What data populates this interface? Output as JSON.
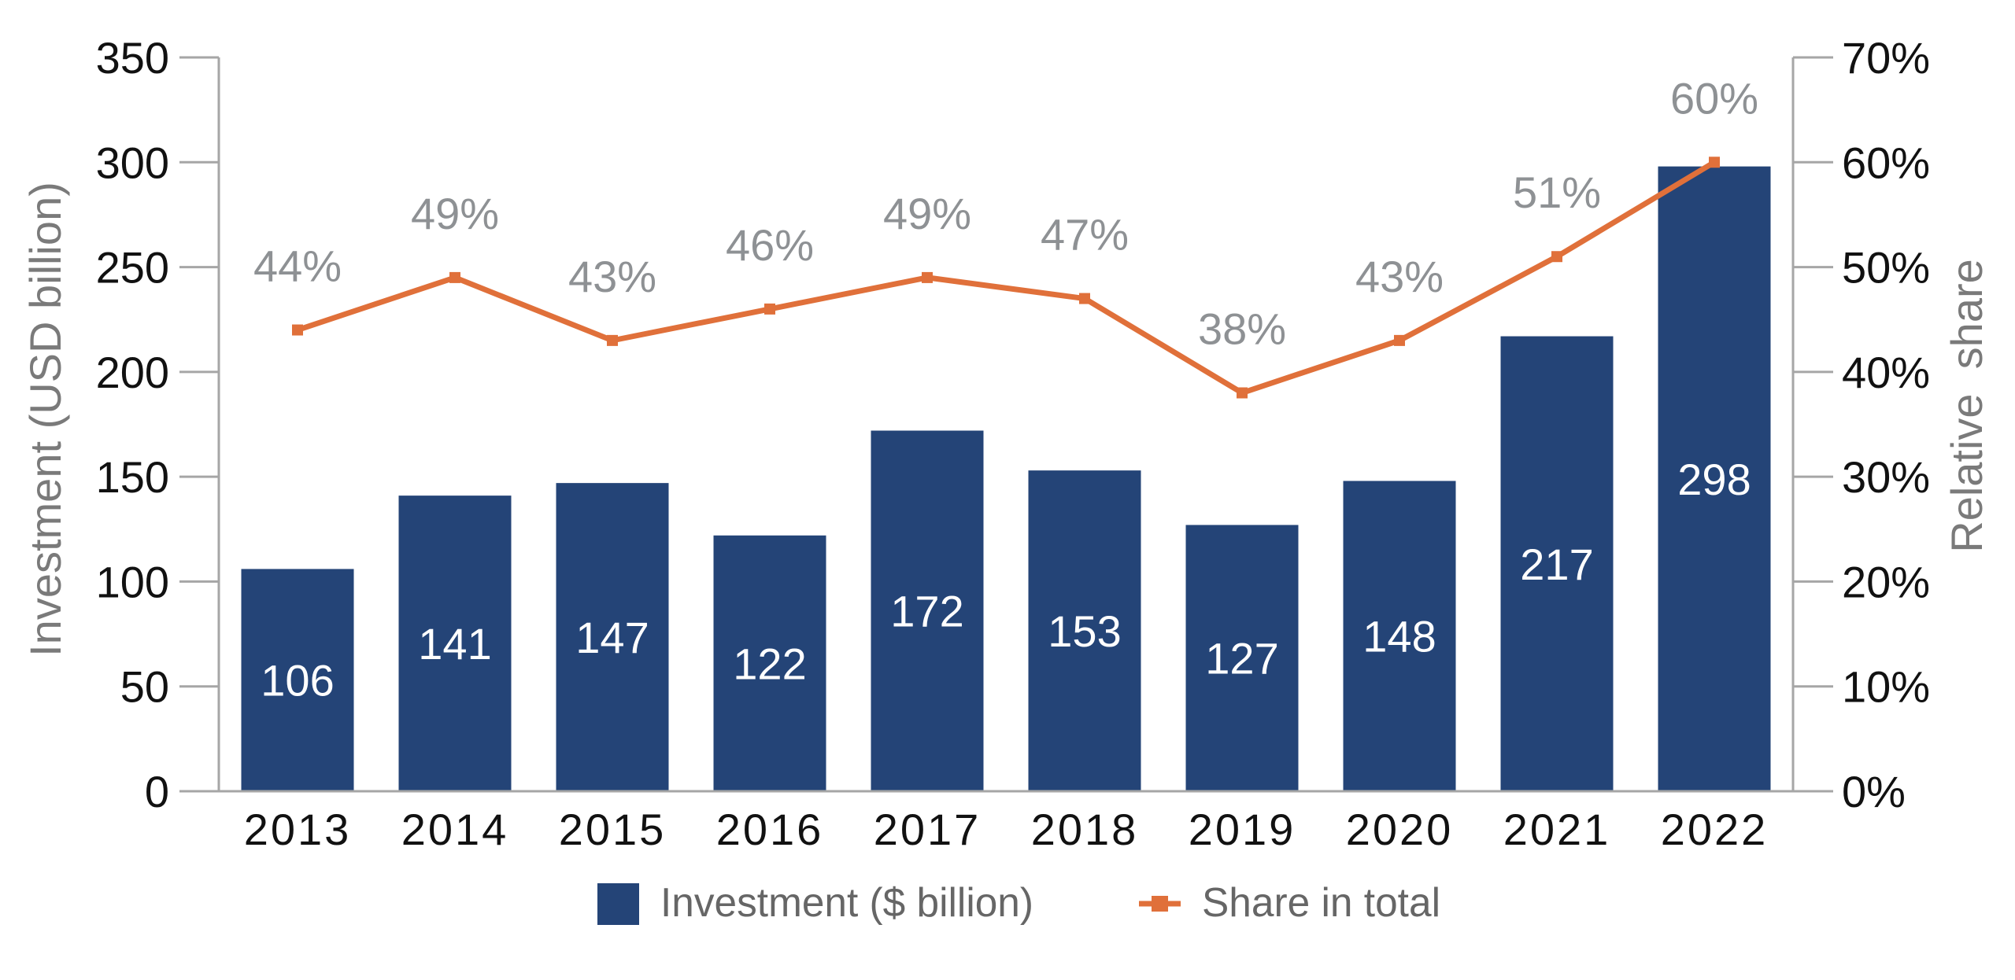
{
  "chart_data": {
    "type": "bar+line",
    "categories": [
      "2013",
      "2014",
      "2015",
      "2016",
      "2017",
      "2018",
      "2019",
      "2020",
      "2021",
      "2022"
    ],
    "series": [
      {
        "name": "Investment ($ billion)",
        "type": "bar",
        "axis": "left",
        "values": [
          106,
          141,
          147,
          122,
          172,
          153,
          127,
          148,
          217,
          298
        ],
        "labels": [
          "106",
          "141",
          "147",
          "122",
          "172",
          "153",
          "127",
          "148",
          "217",
          "298"
        ],
        "color": "#244477"
      },
      {
        "name": "Share in total",
        "type": "line",
        "axis": "right",
        "values": [
          44,
          49,
          43,
          46,
          49,
          47,
          38,
          43,
          51,
          60
        ],
        "labels": [
          "44%",
          "49%",
          "43%",
          "46%",
          "49%",
          "47%",
          "38%",
          "43%",
          "51%",
          "60%"
        ],
        "color": "#E0703A"
      }
    ],
    "ylabel": "Investment (USD billion)",
    "y2label": "Relative  share",
    "ylim": [
      0,
      350
    ],
    "y2lim": [
      0,
      70
    ],
    "yticks": [
      "0",
      "50",
      "100",
      "150",
      "200",
      "250",
      "300",
      "350"
    ],
    "y2ticks": [
      "0%",
      "10%",
      "20%",
      "30%",
      "40%",
      "50%",
      "60%",
      "70%"
    ],
    "grid": false,
    "legend_position": "bottom-center",
    "legend": [
      "Investment ($ billion)",
      "Share in total"
    ]
  }
}
